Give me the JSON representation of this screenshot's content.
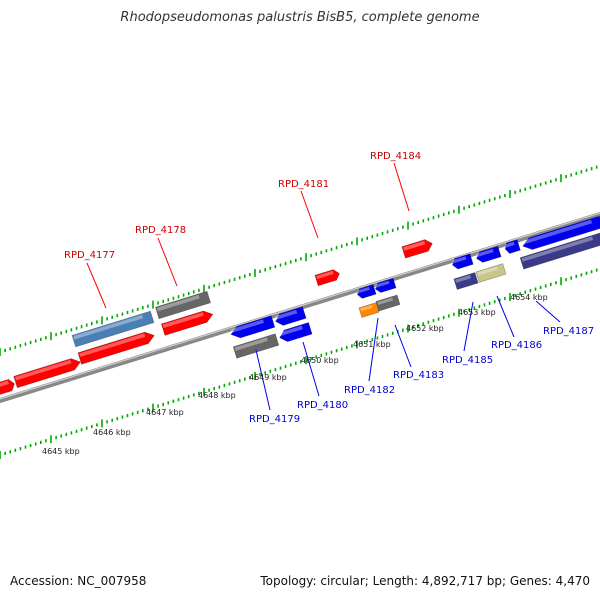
{
  "title": "Rhodopseudomonas palustris BisB5, complete genome",
  "footer": {
    "accession": "Accession: NC_007958",
    "summary": "Topology: circular; Length: 4,892,717 bp; Genes: 4,470"
  },
  "colors": {
    "gene_forward": "#ff0000",
    "gene_reverse": "#0000ee",
    "gene_gray": "#666666",
    "gene_steelblue": "#4a7fb5",
    "gene_orange": "#ff8800",
    "gene_khaki": "#c8c48a",
    "gene_navy": "#3a3a88",
    "backbone": "#888888",
    "ticks": "#00aa00",
    "label_forward": "#cc0000",
    "label_reverse": "#0000cc"
  },
  "kbp_labels": [
    "4645 kbp",
    "4646 kbp",
    "4647 kbp",
    "4648 kbp",
    "4649 kbp",
    "4650 kbp",
    "4651 kbp",
    "4652 kbp",
    "4653 kbp",
    "4654 kbp"
  ],
  "gene_labels": {
    "forward": [
      "RPD_4177",
      "RPD_4178",
      "RPD_4181",
      "RPD_4184"
    ],
    "reverse": [
      "RPD_4179",
      "RPD_4180",
      "RPD_4182",
      "RPD_4183",
      "RPD_4185",
      "RPD_4186",
      "RPD_4187"
    ]
  }
}
